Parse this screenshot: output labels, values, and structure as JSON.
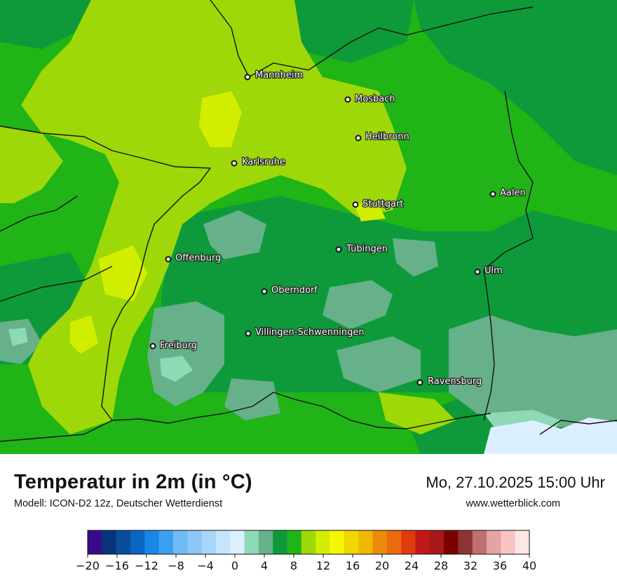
{
  "title": "Temperatur in 2m (in °C)",
  "subtitle": "Modell: ICON-D2 12z, Deutscher Wetterdienst",
  "datetime": "Mo, 27.10.2025 15:00 Uhr",
  "website": "www.wetterblick.com",
  "cities": [
    {
      "name": "Mannheim"
    },
    {
      "name": "Mosbach"
    },
    {
      "name": "Heilbronn"
    },
    {
      "name": "Karlsruhe"
    },
    {
      "name": "Aalen"
    },
    {
      "name": "Stuttgart"
    },
    {
      "name": "Tübingen"
    },
    {
      "name": "Offenburg"
    },
    {
      "name": "Ulm"
    },
    {
      "name": "Oberndorf"
    },
    {
      "name": "Villingen-Schwenningen"
    },
    {
      "name": "Freiburg"
    },
    {
      "name": "Ravensburg"
    }
  ],
  "legend": {
    "tick_labels": [
      "−20",
      "−16",
      "−12",
      "−8",
      "−4",
      "0",
      "4",
      "8",
      "12",
      "16",
      "20",
      "24",
      "28",
      "32",
      "36",
      "40"
    ],
    "colors": [
      "#3a0a8c",
      "#08357a",
      "#0a4d9c",
      "#0a66c2",
      "#1a86e6",
      "#3aa0f2",
      "#70baf6",
      "#8ec6f8",
      "#a8d6fa",
      "#c6e4fc",
      "#dcefff",
      "#8ed9b6",
      "#66b08a",
      "#0e9a3a",
      "#20b416",
      "#9ed808",
      "#d2ee00",
      "#f4f800",
      "#f2d600",
      "#f0b800",
      "#ee8a0a",
      "#ea6a0e",
      "#e03a0e",
      "#c01818",
      "#a81818",
      "#7c0000",
      "#8c3434",
      "#c07070",
      "#e4a4a4",
      "#f8c4c4",
      "#fde6e6"
    ]
  },
  "map_colors": {
    "base": "#20b416",
    "light_green": "#9ed808",
    "yellow_green": "#d2ee00",
    "dark_green": "#0e9a3a",
    "grey_green": "#66b08a",
    "mint": "#8ed9b6",
    "pale_blue": "#dcefff",
    "border": "#111111"
  }
}
